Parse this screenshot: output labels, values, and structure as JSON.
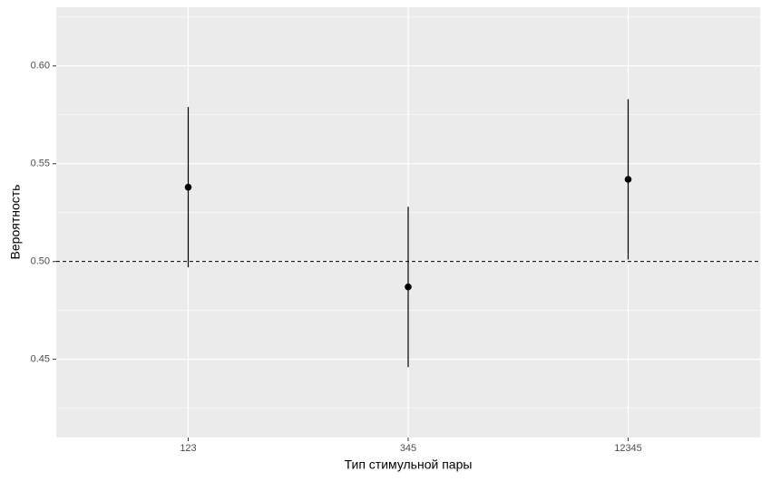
{
  "chart_data": {
    "type": "pointrange",
    "x_label": "Тип стимульной пары",
    "y_label": "Вероятность",
    "categories": [
      "123",
      "345",
      "12345"
    ],
    "values": [
      0.538,
      0.487,
      0.542
    ],
    "lower": [
      0.497,
      0.446,
      0.501
    ],
    "upper": [
      0.579,
      0.528,
      0.583
    ],
    "color": "#000000",
    "hline": 0.5,
    "ylim": [
      0.41,
      0.63
    ],
    "yticks": [
      {
        "value": 0.45,
        "label": "0.45"
      },
      {
        "value": 0.5,
        "label": "0.50"
      },
      {
        "value": 0.55,
        "label": "0.55"
      },
      {
        "value": 0.6,
        "label": "0.60"
      }
    ],
    "minor_yticks": [
      0.425,
      0.475,
      0.525,
      0.575,
      0.625
    ],
    "grid": true
  }
}
